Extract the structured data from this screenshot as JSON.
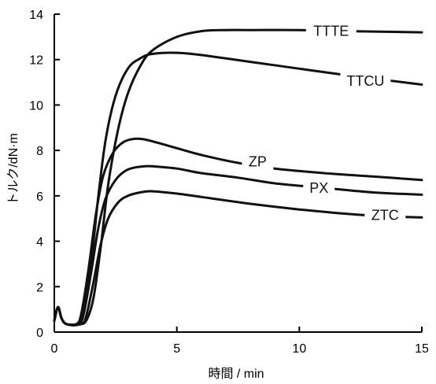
{
  "chart_data": {
    "type": "line",
    "title": "",
    "xlabel": "時間 / min",
    "ylabel": "トルク/dN·m",
    "xlim": [
      0,
      15
    ],
    "ylim": [
      0,
      14
    ],
    "xticks": [
      0,
      5,
      10,
      15
    ],
    "yticks": [
      0,
      2,
      4,
      6,
      8,
      10,
      12,
      14
    ],
    "grid": false,
    "legend": "inline labels at curve ends",
    "series": [
      {
        "name": "TTTE",
        "x": [
          0,
          0.15,
          0.3,
          0.5,
          1.0,
          1.3,
          1.6,
          1.9,
          2.2,
          2.6,
          3.0,
          3.5,
          4.0,
          5.0,
          6.0,
          7.0,
          8.0,
          10.0,
          12.0,
          15.0
        ],
        "y": [
          0.5,
          1.1,
          0.6,
          0.35,
          0.35,
          0.5,
          1.5,
          3.8,
          6.5,
          8.9,
          10.5,
          11.7,
          12.4,
          13.0,
          13.25,
          13.3,
          13.3,
          13.3,
          13.25,
          13.2
        ]
      },
      {
        "name": "TTCU",
        "x": [
          0,
          0.15,
          0.3,
          0.5,
          1.0,
          1.2,
          1.5,
          1.8,
          2.1,
          2.5,
          3.0,
          3.5,
          4.0,
          5.0,
          6.0,
          8.0,
          10.0,
          12.0,
          13.5,
          15.0
        ],
        "y": [
          0.5,
          1.1,
          0.6,
          0.35,
          0.35,
          0.9,
          3.0,
          6.0,
          8.5,
          10.4,
          11.6,
          12.05,
          12.25,
          12.3,
          12.2,
          11.9,
          11.6,
          11.3,
          11.1,
          10.9
        ]
      },
      {
        "name": "ZP",
        "x": [
          0,
          0.15,
          0.3,
          0.5,
          0.9,
          1.1,
          1.4,
          1.7,
          2.0,
          2.4,
          2.8,
          3.2,
          3.6,
          4.0,
          5.0,
          6.0,
          7.5,
          9.0,
          11.0,
          13.0,
          15.0
        ],
        "y": [
          0.5,
          1.1,
          0.6,
          0.35,
          0.35,
          0.8,
          2.8,
          5.2,
          6.9,
          7.9,
          8.35,
          8.5,
          8.5,
          8.4,
          8.1,
          7.8,
          7.45,
          7.2,
          7.0,
          6.85,
          6.7
        ]
      },
      {
        "name": "PX",
        "x": [
          0,
          0.15,
          0.3,
          0.5,
          1.0,
          1.2,
          1.5,
          1.8,
          2.1,
          2.5,
          2.9,
          3.3,
          3.7,
          4.0,
          5.0,
          6.0,
          7.5,
          9.0,
          11.0,
          13.0,
          15.0
        ],
        "y": [
          0.5,
          1.1,
          0.6,
          0.35,
          0.35,
          0.8,
          2.6,
          4.6,
          5.9,
          6.7,
          7.1,
          7.25,
          7.3,
          7.3,
          7.2,
          7.0,
          6.8,
          6.55,
          6.35,
          6.15,
          6.05
        ]
      },
      {
        "name": "ZTC",
        "x": [
          0,
          0.15,
          0.3,
          0.5,
          1.1,
          1.3,
          1.6,
          1.9,
          2.2,
          2.6,
          3.0,
          3.5,
          4.0,
          5.0,
          6.0,
          8.0,
          10.0,
          12.0,
          13.5,
          15.0
        ],
        "y": [
          0.5,
          1.1,
          0.6,
          0.35,
          0.35,
          0.7,
          2.2,
          3.9,
          5.0,
          5.7,
          6.0,
          6.15,
          6.2,
          6.1,
          5.95,
          5.65,
          5.4,
          5.2,
          5.1,
          5.05
        ]
      }
    ],
    "annotations": [
      {
        "text": "TTTE",
        "x": 11.3,
        "y": 13.25
      },
      {
        "text": "TTCU",
        "x": 12.7,
        "y": 11.05
      },
      {
        "text": "ZP",
        "x": 8.3,
        "y": 7.5
      },
      {
        "text": "PX",
        "x": 10.8,
        "y": 6.35
      },
      {
        "text": "ZTC",
        "x": 13.5,
        "y": 5.15
      }
    ]
  }
}
